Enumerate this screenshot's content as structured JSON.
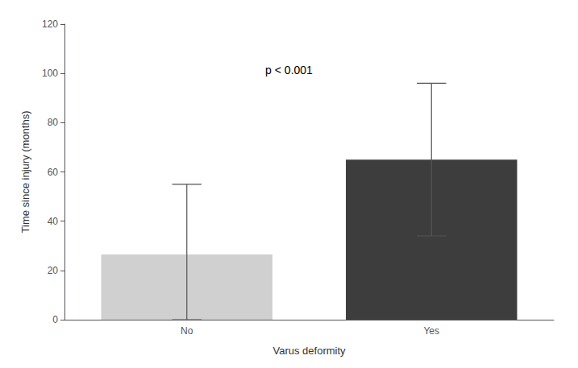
{
  "chart_data": {
    "type": "bar",
    "categories": [
      "No",
      "Yes"
    ],
    "values": [
      26.5,
      65.0
    ],
    "errors_upper": [
      28.5,
      31.0
    ],
    "errors_lower": [
      26.5,
      31.0
    ],
    "colors": [
      "#d0d0d0",
      "#3d3d3d"
    ],
    "xlabel": "Varus deformity",
    "ylabel": "Time since injury (months)",
    "annotation": "p < 0.001",
    "ylim": [
      0,
      120
    ],
    "yticks": [
      0,
      20,
      40,
      60,
      80,
      100,
      120
    ],
    "grid": false
  }
}
